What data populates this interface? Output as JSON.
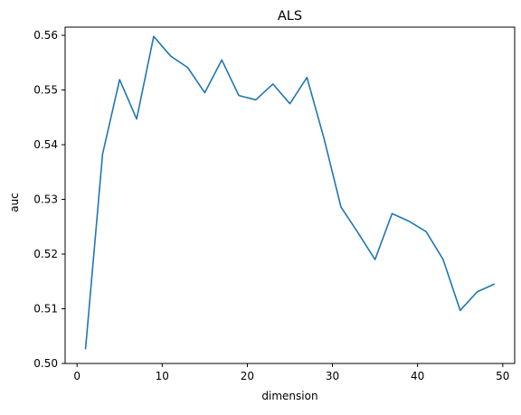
{
  "chart_data": {
    "type": "line",
    "title": "ALS",
    "xlabel": "dimension",
    "ylabel": "auc",
    "xlim": [
      -1.4,
      51.4
    ],
    "ylim": [
      0.5,
      0.5615
    ],
    "xticks": [
      0,
      10,
      20,
      30,
      40,
      50
    ],
    "xtick_labels": [
      "0",
      "10",
      "20",
      "30",
      "40",
      "50"
    ],
    "yticks": [
      0.5,
      0.51,
      0.52,
      0.53,
      0.54,
      0.55,
      0.56
    ],
    "ytick_labels": [
      "0.50",
      "0.51",
      "0.52",
      "0.53",
      "0.54",
      "0.55",
      "0.56"
    ],
    "grid": false,
    "legend": "none",
    "series": [
      {
        "color": "#1f77b4",
        "x": [
          1,
          3,
          5,
          7,
          9,
          11,
          13,
          15,
          17,
          19,
          21,
          23,
          25,
          27,
          29,
          31,
          33,
          35,
          37,
          39,
          41,
          43,
          45,
          47,
          49
        ],
        "y": [
          0.5027,
          0.5383,
          0.5519,
          0.5447,
          0.5598,
          0.5562,
          0.5541,
          0.5495,
          0.5555,
          0.549,
          0.5482,
          0.5511,
          0.5475,
          0.5523,
          0.5412,
          0.5286,
          0.5239,
          0.519,
          0.5274,
          0.526,
          0.5241,
          0.519,
          0.5097,
          0.5131,
          0.5145
        ]
      }
    ]
  }
}
